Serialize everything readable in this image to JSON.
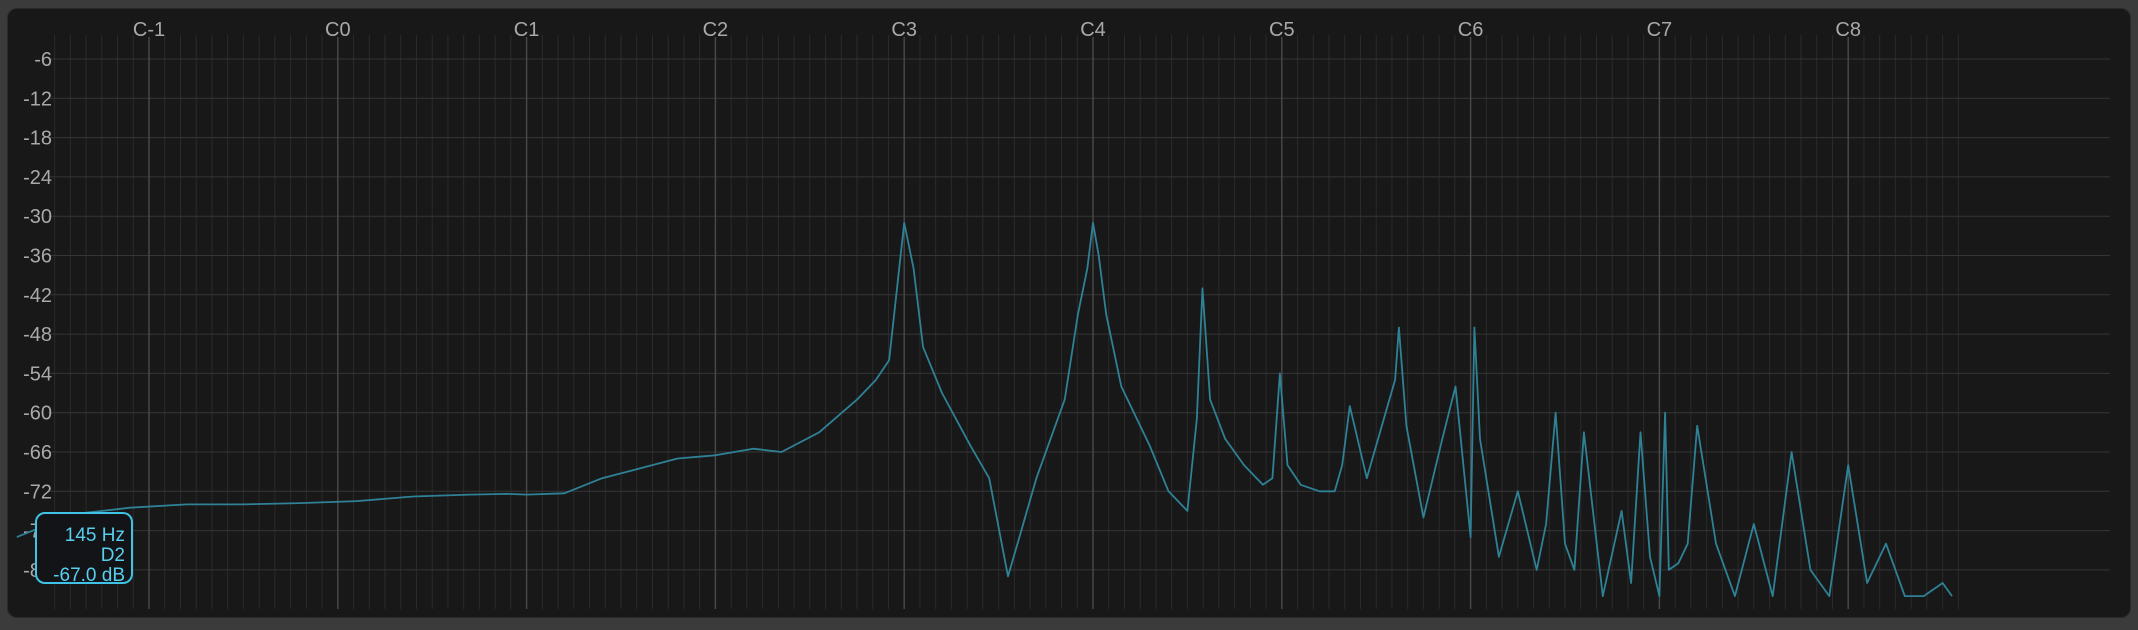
{
  "chart_data": {
    "type": "line",
    "xscale": "log (musical octaves)",
    "x_tick_labels": [
      "C-1",
      "C0",
      "C1",
      "C2",
      "C3",
      "C4",
      "C5",
      "C6",
      "C7",
      "C8"
    ],
    "y_tick_labels": [
      "-6",
      "-12",
      "-18",
      "-24",
      "-30",
      "-36",
      "-42",
      "-48",
      "-54",
      "-60",
      "-66",
      "-72",
      "-78",
      "-84"
    ],
    "ylim": [
      -88,
      0
    ],
    "grid": true,
    "line_color": "#2f8196",
    "series": [
      {
        "x_note_octave": [
          -1.7,
          -1.4,
          -1.1,
          -0.8,
          -0.5,
          -0.2,
          0.1,
          0.4,
          0.7,
          0.9,
          1.0,
          1.2,
          1.4,
          1.6,
          1.8,
          2.0,
          2.2,
          2.35,
          2.55,
          2.75,
          2.85,
          2.92,
          3.0,
          3.05,
          3.1,
          3.2,
          3.35,
          3.45,
          3.55,
          3.6,
          3.7,
          3.85,
          3.92,
          3.97,
          4.0,
          4.03,
          4.07,
          4.15,
          4.3,
          4.4,
          4.5,
          4.55,
          4.58,
          4.62,
          4.7,
          4.8,
          4.9,
          4.95,
          4.99,
          5.03,
          5.1,
          5.2,
          5.28,
          5.32,
          5.36,
          5.45,
          5.55,
          5.6,
          5.62,
          5.66,
          5.75,
          5.85,
          5.92,
          6.0,
          6.02,
          6.05,
          6.15,
          6.25,
          6.35,
          6.4,
          6.45,
          6.5,
          6.55,
          6.6,
          6.7,
          6.8,
          6.85,
          6.9,
          6.95,
          7.0,
          7.03,
          7.05,
          7.1,
          7.15,
          7.2,
          7.3,
          7.4,
          7.5,
          7.6,
          7.7,
          7.8,
          7.9,
          8.0,
          8.1,
          8.2,
          8.3,
          8.4,
          8.5,
          8.55
        ],
        "y_db": [
          -79,
          -75.5,
          -74.5,
          -74,
          -74,
          -73.8,
          -73.5,
          -72.8,
          -72.5,
          -72.4,
          -72.5,
          -72.3,
          -70,
          -68.5,
          -67,
          -66.5,
          -65.5,
          -66,
          -63,
          -58,
          -55,
          -52,
          -31,
          -38,
          -50,
          -57,
          -65,
          -70,
          -85,
          -80,
          -70,
          -58,
          -45,
          -38,
          -31,
          -36,
          -45,
          -56,
          -65,
          -72,
          -75,
          -61,
          -41,
          -58,
          -64,
          -68,
          -71,
          -70,
          -54,
          -68,
          -71,
          -72,
          -72,
          -68,
          -59,
          -70,
          -60,
          -55,
          -47,
          -62,
          -76,
          -64,
          -56,
          -79,
          -47,
          -64,
          -82,
          -72,
          -84,
          -77,
          -60,
          -80,
          -84,
          -63,
          -88,
          -75,
          -86,
          -63,
          -82,
          -88,
          -60,
          -84,
          -83,
          -80,
          -62,
          -80,
          -88,
          -77,
          -88,
          -66,
          -84,
          -88,
          -68,
          -86,
          -80,
          -88,
          -88,
          -86,
          -88
        ]
      }
    ]
  },
  "cursor_readout": {
    "frequency": "145 Hz",
    "note": "D2",
    "level": "-67.0 dB"
  }
}
